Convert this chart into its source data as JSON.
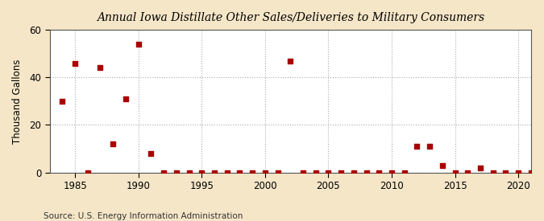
{
  "title": "Annual Iowa Distillate Other Sales/Deliveries to Military Consumers",
  "ylabel": "Thousand Gallons",
  "source": "Source: U.S. Energy Information Administration",
  "fig_background_color": "#f5e6c8",
  "plot_background_color": "#ffffff",
  "marker_color": "#aa0000",
  "xlim": [
    1983,
    2021
  ],
  "ylim": [
    -1,
    60
  ],
  "ylim_display": [
    0,
    60
  ],
  "yticks": [
    0,
    20,
    40,
    60
  ],
  "xticks": [
    1985,
    1990,
    1995,
    2000,
    2005,
    2010,
    2015,
    2020
  ],
  "data": [
    [
      1984,
      30
    ],
    [
      1985,
      46
    ],
    [
      1986,
      0
    ],
    [
      1987,
      44
    ],
    [
      1988,
      12
    ],
    [
      1989,
      31
    ],
    [
      1990,
      54
    ],
    [
      1991,
      8
    ],
    [
      1992,
      0
    ],
    [
      1993,
      0
    ],
    [
      1994,
      0
    ],
    [
      1995,
      0
    ],
    [
      1996,
      0
    ],
    [
      1997,
      0
    ],
    [
      1998,
      0
    ],
    [
      1999,
      0
    ],
    [
      2000,
      0
    ],
    [
      2001,
      0
    ],
    [
      2002,
      47
    ],
    [
      2003,
      0
    ],
    [
      2004,
      0
    ],
    [
      2005,
      0
    ],
    [
      2006,
      0
    ],
    [
      2007,
      0
    ],
    [
      2008,
      0
    ],
    [
      2009,
      0
    ],
    [
      2010,
      0
    ],
    [
      2011,
      0
    ],
    [
      2012,
      11
    ],
    [
      2013,
      11
    ],
    [
      2014,
      3
    ],
    [
      2015,
      0
    ],
    [
      2016,
      0
    ],
    [
      2017,
      2
    ],
    [
      2018,
      0
    ],
    [
      2019,
      0
    ],
    [
      2020,
      0
    ],
    [
      2021,
      0
    ]
  ]
}
